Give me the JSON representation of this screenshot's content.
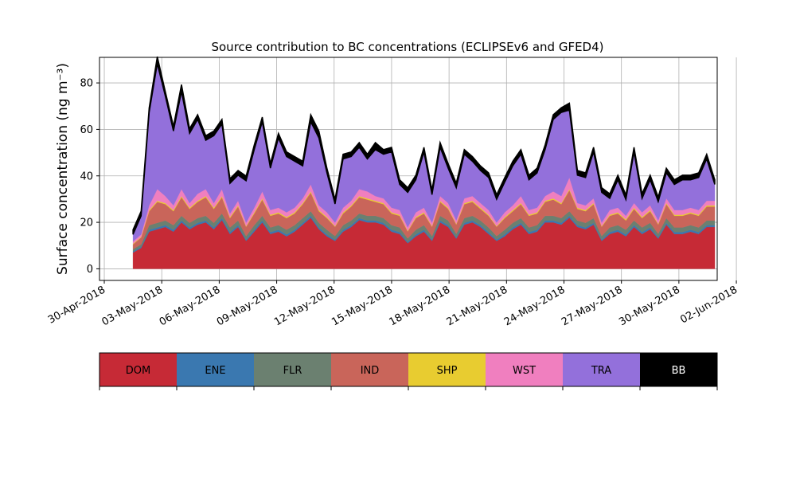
{
  "chart_data": {
    "type": "area",
    "stacked": true,
    "title": "Source contribution to BC concentrations (ECLIPSEv6 and GFED4)",
    "ylabel": "Surface concentration (ng m⁻³)",
    "xlabel": "",
    "x_start": "2018-05-01 12:00",
    "x_end": "2018-05-31 21:00",
    "xlim": [
      "2018-04-29 18:00",
      "2018-06-01 00:00"
    ],
    "ylim": [
      -5,
      91
    ],
    "x_ticks": [
      "30-Apr-2018",
      "03-May-2018",
      "06-May-2018",
      "09-May-2018",
      "12-May-2018",
      "15-May-2018",
      "18-May-2018",
      "21-May-2018",
      "24-May-2018",
      "27-May-2018",
      "30-May-2018",
      "02-Jun-2018"
    ],
    "y_ticks": [
      "0",
      "20",
      "40",
      "60",
      "80"
    ],
    "grid": true,
    "legend_position": "bottom",
    "series": [
      {
        "name": "DOM",
        "color": "#c62a36",
        "values": [
          7,
          9,
          16,
          17,
          18,
          16,
          20,
          17,
          19,
          20,
          17,
          21,
          15,
          18,
          12,
          16,
          20,
          15,
          16,
          14,
          16,
          19,
          22,
          17,
          14,
          12,
          16,
          18,
          21,
          20,
          20,
          19,
          16,
          15,
          11,
          14,
          16,
          12,
          20,
          18,
          13,
          19,
          20,
          18,
          15,
          12,
          14,
          17,
          19,
          15,
          16,
          20,
          20,
          19,
          22,
          18,
          17,
          19,
          12,
          15,
          16,
          14,
          18,
          15,
          17,
          13,
          19,
          15,
          15,
          16,
          15,
          18,
          18
        ]
      },
      {
        "name": "ENE",
        "color": "#3a78b0",
        "values": [
          0.5,
          0.5,
          0.8,
          0.8,
          0.8,
          0.8,
          0.8,
          0.8,
          0.8,
          0.8,
          0.8,
          0.8,
          0.8,
          0.8,
          0.6,
          0.8,
          0.8,
          0.8,
          0.8,
          0.8,
          0.8,
          0.8,
          0.8,
          0.8,
          0.8,
          0.6,
          0.8,
          0.8,
          0.8,
          0.8,
          0.8,
          0.8,
          0.8,
          0.8,
          0.6,
          0.8,
          0.8,
          0.6,
          0.8,
          0.8,
          0.6,
          0.8,
          0.8,
          0.8,
          0.8,
          0.6,
          0.8,
          0.8,
          0.8,
          0.8,
          0.8,
          0.8,
          0.8,
          0.8,
          0.8,
          0.8,
          0.8,
          0.8,
          0.6,
          0.8,
          0.8,
          0.8,
          0.8,
          0.8,
          0.8,
          0.6,
          0.8,
          0.8,
          0.8,
          0.8,
          0.8,
          0.8,
          0.8
        ]
      },
      {
        "name": "FLR",
        "color": "#6b8070",
        "values": [
          1,
          1,
          2,
          2,
          2,
          2,
          2,
          2,
          2,
          2,
          2,
          2,
          2,
          2,
          1.5,
          2,
          2,
          2,
          2,
          2,
          2,
          2,
          2,
          2,
          2,
          1.5,
          2,
          2,
          2,
          2,
          2,
          2,
          2,
          2,
          1.5,
          2,
          2,
          1.5,
          2,
          2,
          1.5,
          2,
          2,
          2,
          2,
          1.5,
          2,
          2,
          2,
          2,
          2,
          2,
          2,
          2,
          2,
          2,
          2,
          2,
          1.5,
          2,
          2,
          2,
          2,
          2,
          2,
          1.5,
          2,
          2,
          2,
          2,
          2,
          2,
          2
        ]
      },
      {
        "name": "IND",
        "color": "#c9655a",
        "values": [
          2,
          3,
          6,
          9,
          7,
          6,
          8,
          6,
          7,
          8,
          6,
          7,
          4,
          6,
          4,
          5,
          7,
          5,
          5,
          5,
          5,
          6,
          8,
          5,
          5,
          4,
          5,
          6,
          7,
          7,
          6,
          6,
          5,
          5,
          3,
          5,
          5,
          4,
          6,
          5,
          4,
          6,
          6,
          5,
          5,
          4,
          5,
          5,
          6,
          5,
          5,
          6,
          7,
          6,
          9,
          5,
          5,
          6,
          4,
          5,
          5,
          4,
          5,
          4,
          5,
          4,
          6,
          5,
          5,
          5,
          5,
          6,
          6
        ]
      },
      {
        "name": "SHP",
        "color": "#e8cc30",
        "values": [
          0.3,
          0.3,
          0.5,
          0.5,
          0.5,
          0.5,
          0.5,
          0.5,
          0.5,
          0.5,
          0.5,
          0.5,
          0.5,
          0.5,
          0.3,
          0.5,
          0.5,
          0.5,
          0.5,
          0.5,
          0.5,
          0.5,
          0.5,
          0.5,
          0.5,
          0.3,
          0.5,
          0.5,
          0.5,
          0.5,
          0.5,
          0.5,
          0.5,
          0.5,
          0.3,
          0.5,
          0.5,
          0.3,
          0.5,
          0.5,
          0.3,
          0.5,
          0.5,
          0.5,
          0.5,
          0.3,
          0.5,
          0.5,
          0.5,
          0.5,
          0.5,
          0.5,
          0.5,
          0.5,
          0.5,
          0.5,
          0.5,
          0.5,
          0.3,
          0.5,
          0.5,
          0.5,
          0.5,
          0.5,
          0.5,
          0.3,
          0.5,
          0.5,
          0.5,
          0.5,
          0.5,
          0.5,
          0.5
        ]
      },
      {
        "name": "WST",
        "color": "#f07fbf",
        "values": [
          1,
          1,
          2,
          5,
          3,
          2,
          3,
          2,
          3,
          3,
          2,
          3,
          1.5,
          2,
          1.5,
          2,
          3,
          2,
          2,
          2,
          2,
          2,
          3,
          2,
          2,
          1.5,
          2,
          2,
          3,
          3,
          2,
          2,
          2,
          2,
          1.5,
          2,
          2,
          1.5,
          2,
          2,
          1.5,
          2,
          2,
          2,
          2,
          1.5,
          2,
          2,
          3,
          2,
          2,
          2,
          3,
          3,
          5,
          2,
          2,
          2,
          1.5,
          2,
          2,
          1.5,
          2,
          2,
          2,
          1.5,
          2,
          2,
          2,
          2,
          2,
          2,
          2
        ]
      },
      {
        "name": "TRA",
        "color": "#9370db",
        "values": [
          3,
          8,
          40,
          54,
          43,
          32,
          42,
          30,
          32,
          21,
          29,
          28,
          13,
          11,
          18,
          25,
          30,
          18,
          30,
          24,
          20,
          14,
          27,
          29,
          17,
          8,
          21,
          19,
          18,
          14,
          20,
          19,
          24,
          11,
          15,
          14,
          24,
          12,
          21,
          15,
          14,
          19,
          15,
          14,
          14,
          10,
          13,
          17,
          18,
          13,
          15,
          20,
          31,
          36,
          29,
          12,
          12,
          20,
          13,
          5,
          12,
          7,
          22,
          6,
          11,
          8,
          11,
          11,
          13,
          12,
          14,
          18,
          7
        ]
      },
      {
        "name": "BB",
        "color": "#000000",
        "values": [
          2,
          2,
          2,
          3,
          2,
          2,
          3,
          2,
          2,
          2,
          2,
          2,
          2,
          2,
          2,
          2,
          2,
          2,
          2,
          2,
          2,
          2,
          3,
          3,
          2,
          2,
          2,
          2,
          2,
          2,
          3,
          2,
          2,
          2,
          2,
          2,
          2,
          2,
          2,
          2,
          2,
          2,
          2,
          2,
          2,
          2,
          2,
          2,
          2,
          2,
          2,
          2,
          2,
          2,
          3,
          2,
          2,
          2,
          2,
          2,
          2,
          2,
          2,
          2,
          2,
          2,
          2,
          2,
          2,
          2,
          2,
          2,
          2
        ]
      }
    ]
  },
  "legend": {
    "items": [
      {
        "label": "DOM",
        "color": "#c62a36",
        "text_color": "#000000"
      },
      {
        "label": "ENE",
        "color": "#3a78b0",
        "text_color": "#000000"
      },
      {
        "label": "FLR",
        "color": "#6b8070",
        "text_color": "#000000"
      },
      {
        "label": "IND",
        "color": "#c9655a",
        "text_color": "#000000"
      },
      {
        "label": "SHP",
        "color": "#e8cc30",
        "text_color": "#000000"
      },
      {
        "label": "WST",
        "color": "#f07fbf",
        "text_color": "#000000"
      },
      {
        "label": "TRA",
        "color": "#9370db",
        "text_color": "#000000"
      },
      {
        "label": "BB",
        "color": "#000000",
        "text_color": "#ffffff"
      }
    ]
  }
}
